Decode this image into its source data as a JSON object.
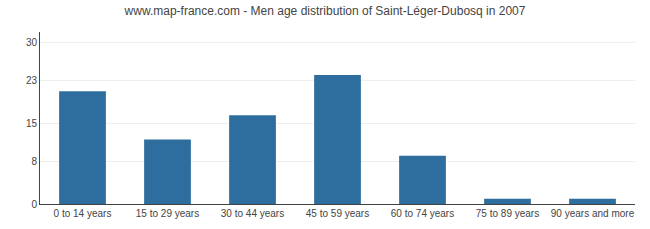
{
  "chart_data": {
    "type": "bar",
    "title": "www.map-france.com - Men age distribution of Saint-Léger-Dubosq in 2007",
    "categories": [
      "0 to 14 years",
      "15 to 29 years",
      "30 to 44 years",
      "45 to 59 years",
      "60 to 74 years",
      "75 to 89 years",
      "90 years and more"
    ],
    "values": [
      21,
      12,
      16.5,
      24,
      9,
      1,
      1
    ],
    "color": "#2e6e9e",
    "ylim": [
      0,
      32
    ],
    "yticks": [
      0,
      8,
      15,
      23,
      30
    ],
    "grid": true
  }
}
